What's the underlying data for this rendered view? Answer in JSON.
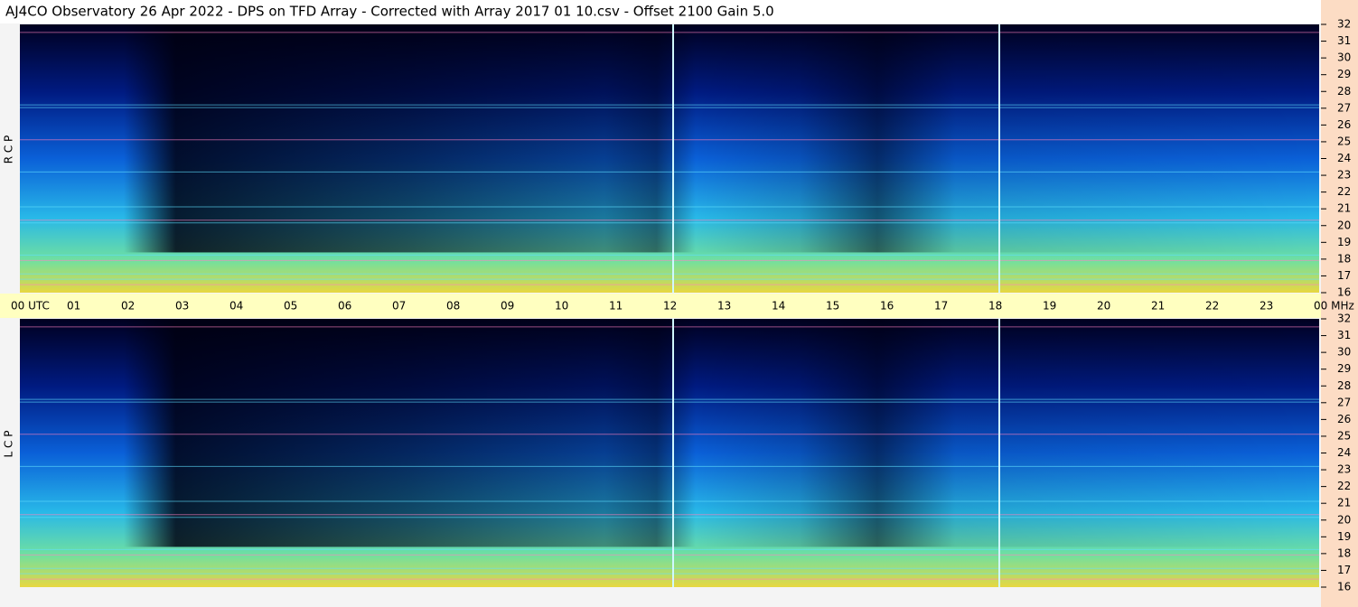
{
  "header": {
    "title": "AJ4CO Observatory  26 Apr 2022  -  DPS on TFD Array  -  Corrected with Array 2017 01 10.csv  -  Offset 2100  Gain 5.0"
  },
  "x_axis": {
    "labels": [
      "00 UTC",
      "01",
      "02",
      "03",
      "04",
      "05",
      "06",
      "07",
      "08",
      "09",
      "10",
      "11",
      "12",
      "13",
      "14",
      "15",
      "16",
      "17",
      "18",
      "19",
      "20",
      "21",
      "22",
      "23",
      "00 MHz"
    ]
  },
  "y_axis": {
    "labels": [
      "32",
      "31",
      "30",
      "29",
      "28",
      "27",
      "26",
      "25",
      "24",
      "23",
      "22",
      "21",
      "20",
      "19",
      "18",
      "17",
      "16"
    ]
  },
  "panels": [
    {
      "label": "R  C  P"
    },
    {
      "label": "L  C  P"
    }
  ]
}
